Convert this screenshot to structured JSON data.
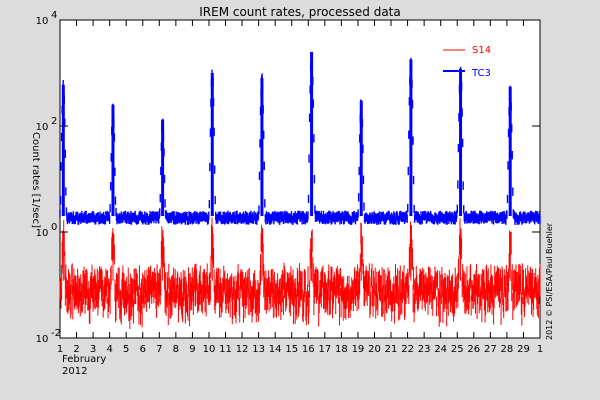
{
  "chart_data": {
    "type": "line",
    "title": "IREM count rates, processed data",
    "ylabel": "Count rates [1/sec]",
    "xlabel_month": "February",
    "xlabel_year": "2012",
    "credit": "2012 © PSI/ESA/Paul Buehler",
    "x_ticks": [
      "1",
      "2",
      "3",
      "4",
      "5",
      "6",
      "7",
      "8",
      "9",
      "10",
      "11",
      "12",
      "13",
      "14",
      "15",
      "16",
      "17",
      "18",
      "19",
      "20",
      "21",
      "22",
      "23",
      "24",
      "25",
      "26",
      "27",
      "28",
      "29",
      "1"
    ],
    "x_range_days": [
      1,
      30
    ],
    "y_scale": "log",
    "y_range": [
      0.01,
      10000
    ],
    "y_ticks": [
      {
        "value": 0.01,
        "base": "10",
        "exp": "-2"
      },
      {
        "value": 1,
        "base": "10",
        "exp": "0"
      },
      {
        "value": 100,
        "base": "10",
        "exp": "2"
      },
      {
        "value": 10000,
        "base": "10",
        "exp": "4"
      }
    ],
    "series": [
      {
        "name": "S14",
        "color": "#ff0000",
        "baseline": 0.12,
        "spikes": [
          {
            "day": 1.2,
            "peak": 1.1
          },
          {
            "day": 4.2,
            "peak": 1.0
          },
          {
            "day": 7.2,
            "peak": 0.9
          },
          {
            "day": 10.2,
            "peak": 1.0
          },
          {
            "day": 13.2,
            "peak": 1.0
          },
          {
            "day": 16.2,
            "peak": 1.0
          },
          {
            "day": 19.2,
            "peak": 1.0
          },
          {
            "day": 22.2,
            "peak": 1.0
          },
          {
            "day": 25.2,
            "peak": 1.0
          },
          {
            "day": 28.2,
            "peak": 1.0
          }
        ]
      },
      {
        "name": "TC3",
        "color": "#0000ff",
        "baseline": 2.0,
        "spikes": [
          {
            "day": 1.2,
            "peak": 600
          },
          {
            "day": 4.2,
            "peak": 250
          },
          {
            "day": 7.2,
            "peak": 130
          },
          {
            "day": 10.2,
            "peak": 1000
          },
          {
            "day": 13.2,
            "peak": 800
          },
          {
            "day": 16.2,
            "peak": 2500
          },
          {
            "day": 19.2,
            "peak": 300
          },
          {
            "day": 22.2,
            "peak": 1800
          },
          {
            "day": 25.2,
            "peak": 1200
          },
          {
            "day": 28.2,
            "peak": 550
          }
        ]
      }
    ],
    "legend_placement": "top-right"
  }
}
